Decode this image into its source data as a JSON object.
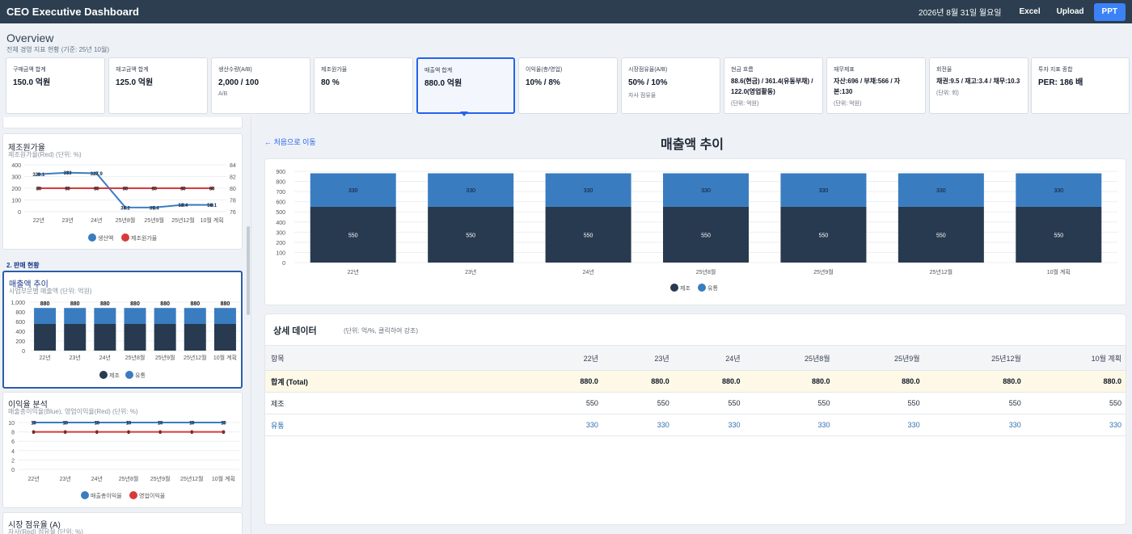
{
  "topbar": {
    "title": "CEO Executive Dashboard",
    "date": "2026년 8월 31일 월요일",
    "excel": "Excel",
    "upload": "Upload",
    "ppt": "PPT"
  },
  "overview": {
    "title": "Overview",
    "subtitle": "전체 경영 지표 현황 (기준: 25년 10월)"
  },
  "kpis": [
    {
      "label": "구매금액 합계",
      "value": "150.0 억원",
      "note": ""
    },
    {
      "label": "재고금액 합계",
      "value": "125.0 억원",
      "note": ""
    },
    {
      "label": "생산수량(A/B)",
      "value": "2,000 / 100",
      "note": "A/B"
    },
    {
      "label": "제조원가율",
      "value": "80 %",
      "note": ""
    },
    {
      "label": "매출액 합계",
      "value": "880.0 억원",
      "note": ""
    },
    {
      "label": "이익율(총/영업)",
      "value": "10% / 8%",
      "note": ""
    },
    {
      "label": "시장점유율(A/B)",
      "value": "50% / 10%",
      "note": "자사 점유율"
    },
    {
      "label": "현금 흐름",
      "value": "88.6(현금) / 361.4(유동부채) / 122.0(영업활동)",
      "note": "(단위: 억원)"
    },
    {
      "label": "재무제표",
      "value": "자산:696 / 부채:566 / 자본:130",
      "note": "(단위: 억원)"
    },
    {
      "label": "회전율",
      "value": "채권:9.5 / 재고:3.4 / 채무:10.3",
      "note": "(단위: 회)"
    },
    {
      "label": "투자 지표 종합",
      "value": "PER: 186 배",
      "note": ""
    }
  ],
  "left": {
    "cost": {
      "title": "제조원가율",
      "subtitle": "제조원가율(Red) (단위: %)",
      "legend": [
        "생산액",
        "제조원가율"
      ]
    },
    "section2": "2. 판매 현황",
    "sales": {
      "title": "매출액 추이",
      "subtitle": "사업부문별 매출액 (단위: 억원)",
      "legend": [
        "제조",
        "유통"
      ]
    },
    "profit": {
      "title": "이익율 분석",
      "subtitle": "매출총이익율(Blue), 영업이익율(Red) (단위: %)",
      "legend": [
        "매출총이익율",
        "영업이익율"
      ]
    },
    "share": {
      "title": "시장 점유율 (A)",
      "subtitle": "자사(Red) 점유율 (단위: %)"
    }
  },
  "main": {
    "back": "← 처음으로 이동",
    "title": "매출액 추이",
    "table_title": "상세 데이터",
    "table_sub": "(단위: 억/%, 클릭하여 강조)",
    "table_header": [
      "항목",
      "22년",
      "23년",
      "24년",
      "25년8월",
      "25년9월",
      "25년12월",
      "10월 계획"
    ],
    "rows": [
      {
        "name": "합계 (Total)",
        "values": [
          "880.0",
          "880.0",
          "880.0",
          "880.0",
          "880.0",
          "880.0",
          "880.0"
        ]
      },
      {
        "name": "제조",
        "values": [
          "550",
          "550",
          "550",
          "550",
          "550",
          "550",
          "550"
        ]
      },
      {
        "name": "유통",
        "values": [
          "330",
          "330",
          "330",
          "330",
          "330",
          "330",
          "330"
        ]
      }
    ]
  },
  "colors": {
    "dark": "#283a4f",
    "blue": "#3a7cc0",
    "red": "#d63b3b"
  },
  "chart_data": [
    {
      "type": "bar",
      "stacked": true,
      "categories": [
        "22년",
        "23년",
        "24년",
        "25년8월",
        "25년9월",
        "25년12월",
        "10월 계획"
      ],
      "series": [
        {
          "name": "제조",
          "values": [
            550,
            550,
            550,
            550,
            550,
            550,
            550
          ]
        },
        {
          "name": "유통",
          "values": [
            330,
            330,
            330,
            330,
            330,
            330,
            330
          ]
        }
      ],
      "ylim": [
        0,
        900
      ],
      "yticks": [
        0,
        100,
        200,
        300,
        400,
        500,
        600,
        700,
        800,
        900
      ],
      "legend": "bottom"
    },
    {
      "type": "bar",
      "stacked": true,
      "categories": [
        "22년",
        "23년",
        "24년",
        "25년8월",
        "25년9월",
        "25년12월",
        "10월 계획"
      ],
      "series": [
        {
          "name": "제조",
          "values": [
            550,
            550,
            550,
            550,
            550,
            550,
            550
          ]
        },
        {
          "name": "유통",
          "values": [
            330,
            330,
            330,
            330,
            330,
            330,
            330
          ]
        }
      ],
      "totals": [
        880,
        880,
        880,
        880,
        880,
        880,
        880
      ],
      "ylim": [
        0,
        1000
      ],
      "ytick_labels": [
        "0",
        "200",
        "400",
        "600",
        "800",
        "1,000"
      ],
      "legend": "bottom"
    },
    {
      "type": "line",
      "categories": [
        "22년",
        "23년",
        "24년",
        "25년8월",
        "25년9월",
        "25년12월",
        "10월 계획"
      ],
      "series": [
        {
          "name": "생산액",
          "axis": "left",
          "values": [
            320.1,
            333,
            327.9,
            36.2,
            35.4,
            58.4,
            58.1
          ],
          "labels": [
            "320.1",
            "333",
            "327.9",
            "36.2",
            "35.4",
            "58.4",
            "58.1"
          ]
        },
        {
          "name": "제조원가율",
          "axis": "right",
          "values": [
            80,
            80,
            80,
            80,
            80,
            80,
            80
          ],
          "labels": [
            "80",
            "80",
            "80",
            "80",
            "80",
            "80",
            "80"
          ]
        }
      ],
      "ylim": [
        0,
        400
      ],
      "y2lim": [
        76,
        84
      ],
      "yticks": [
        0,
        100,
        200,
        300,
        400
      ],
      "y2ticks": [
        76,
        78,
        80,
        82,
        84
      ],
      "legend": "bottom"
    },
    {
      "type": "line",
      "categories": [
        "22년",
        "23년",
        "24년",
        "25년8월",
        "25년9월",
        "25년12월",
        "10월 계획"
      ],
      "series": [
        {
          "name": "매출총이익율",
          "values": [
            10,
            10,
            10,
            10,
            10,
            10,
            10
          ]
        },
        {
          "name": "영업이익율",
          "values": [
            8,
            8,
            8,
            8,
            8,
            8,
            8
          ]
        }
      ],
      "ylim": [
        0,
        10
      ],
      "yticks": [
        0,
        2,
        4,
        6,
        8,
        10
      ],
      "legend": "bottom"
    }
  ]
}
